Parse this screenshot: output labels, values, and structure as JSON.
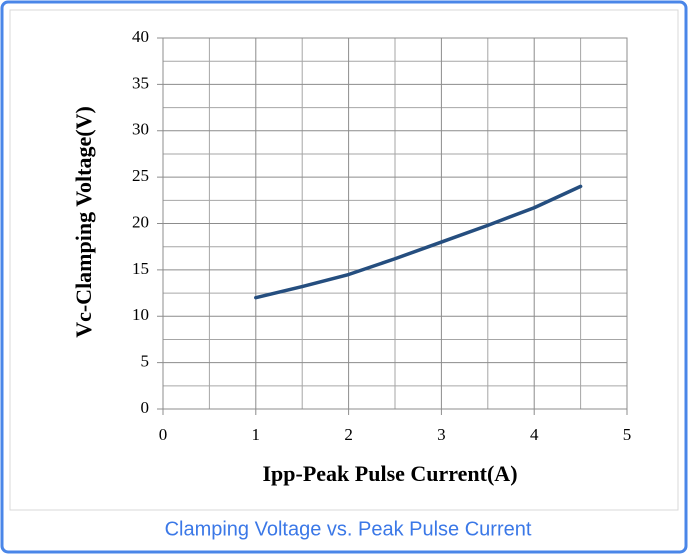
{
  "chart_data": {
    "type": "line",
    "x_label": "Ipp-Peak Pulse Current(A)",
    "y_label": "Vc-Clamping Voltage(V)",
    "caption": "Clamping Voltage vs. Peak Pulse Current",
    "x": [
      1,
      1.5,
      2,
      2.5,
      3,
      3.5,
      4,
      4.5
    ],
    "values": [
      12,
      13.2,
      14.5,
      16.2,
      18,
      19.8,
      21.7,
      24
    ],
    "color": "#254e7f",
    "xlim": [
      0,
      5
    ],
    "xticks": [
      0,
      1,
      2,
      3,
      4,
      5
    ],
    "ylim": [
      0,
      40
    ],
    "yticks": [
      0,
      5,
      10,
      15,
      20,
      25,
      30,
      35,
      40
    ],
    "x_minor_grid": [
      0.5,
      1.5,
      2.5,
      3.5,
      4.5
    ],
    "y_minor_grid": [
      2.5,
      7.5,
      12.5,
      17.5,
      22.5,
      27.5,
      32.5,
      37.5
    ],
    "grid": true
  }
}
